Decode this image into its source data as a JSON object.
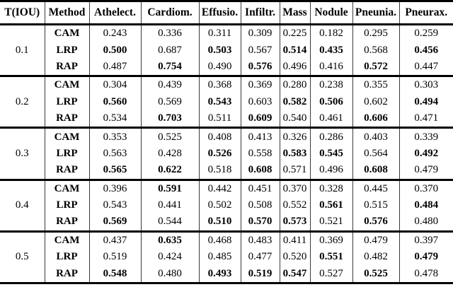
{
  "table": {
    "columns": [
      "T(IOU)",
      "Method",
      "Athelect.",
      "Cardiom.",
      "Effusio.",
      "Infiltr.",
      "Mass",
      "Nodule",
      "Pneunia.",
      "Pneurax."
    ],
    "colors": {
      "text": "#000000",
      "rule": "#000000",
      "background": "#ffffff"
    },
    "groups": [
      {
        "tiou": "0.1",
        "rows": [
          {
            "method": "CAM",
            "values": [
              "0.243",
              "0.336",
              "0.311",
              "0.309",
              "0.225",
              "0.182",
              "0.295",
              "0.259"
            ],
            "bold": [
              false,
              false,
              false,
              false,
              false,
              false,
              false,
              false
            ]
          },
          {
            "method": "LRP",
            "values": [
              "0.500",
              "0.687",
              "0.503",
              "0.567",
              "0.514",
              "0.435",
              "0.568",
              "0.456"
            ],
            "bold": [
              true,
              false,
              true,
              false,
              true,
              true,
              false,
              true
            ]
          },
          {
            "method": "RAP",
            "values": [
              "0.487",
              "0.754",
              "0.490",
              "0.576",
              "0.496",
              "0.416",
              "0.572",
              "0.447"
            ],
            "bold": [
              false,
              true,
              false,
              true,
              false,
              false,
              true,
              false
            ]
          }
        ]
      },
      {
        "tiou": "0.2",
        "rows": [
          {
            "method": "CAM",
            "values": [
              "0.304",
              "0.439",
              "0.368",
              "0.369",
              "0.280",
              "0.238",
              "0.355",
              "0.303"
            ],
            "bold": [
              false,
              false,
              false,
              false,
              false,
              false,
              false,
              false
            ]
          },
          {
            "method": "LRP",
            "values": [
              "0.560",
              "0.569",
              "0.543",
              "0.603",
              "0.582",
              "0.506",
              "0.602",
              "0.494"
            ],
            "bold": [
              true,
              false,
              true,
              false,
              true,
              true,
              false,
              true
            ]
          },
          {
            "method": "RAP",
            "values": [
              "0.534",
              "0.703",
              "0.511",
              "0.609",
              "0.540",
              "0.461",
              "0.606",
              "0.471"
            ],
            "bold": [
              false,
              true,
              false,
              true,
              false,
              false,
              true,
              false
            ]
          }
        ]
      },
      {
        "tiou": "0.3",
        "rows": [
          {
            "method": "CAM",
            "values": [
              "0.353",
              "0.525",
              "0.408",
              "0.413",
              "0.326",
              "0.286",
              "0.403",
              "0.339"
            ],
            "bold": [
              false,
              false,
              false,
              false,
              false,
              false,
              false,
              false
            ]
          },
          {
            "method": "LRP",
            "values": [
              "0.563",
              "0.428",
              "0.526",
              "0.558",
              "0.583",
              "0.545",
              "0.564",
              "0.492"
            ],
            "bold": [
              false,
              false,
              true,
              false,
              true,
              true,
              false,
              true
            ]
          },
          {
            "method": "RAP",
            "values": [
              "0.565",
              "0.622",
              "0.518",
              "0.608",
              "0.571",
              "0.496",
              "0.608",
              "0.479"
            ],
            "bold": [
              true,
              true,
              false,
              true,
              false,
              false,
              true,
              false
            ]
          }
        ]
      },
      {
        "tiou": "0.4",
        "rows": [
          {
            "method": "CAM",
            "values": [
              "0.396",
              "0.591",
              "0.442",
              "0.451",
              "0.370",
              "0.328",
              "0.445",
              "0.370"
            ],
            "bold": [
              false,
              true,
              false,
              false,
              false,
              false,
              false,
              false
            ]
          },
          {
            "method": "LRP",
            "values": [
              "0.543",
              "0.441",
              "0.502",
              "0.508",
              "0.552",
              "0.561",
              "0.515",
              "0.484"
            ],
            "bold": [
              false,
              false,
              false,
              false,
              false,
              true,
              false,
              true
            ]
          },
          {
            "method": "RAP",
            "values": [
              "0.569",
              "0.544",
              "0.510",
              "0.570",
              "0.573",
              "0.521",
              "0.576",
              "0.480"
            ],
            "bold": [
              true,
              false,
              true,
              true,
              true,
              false,
              true,
              false
            ]
          }
        ]
      },
      {
        "tiou": "0.5",
        "rows": [
          {
            "method": "CAM",
            "values": [
              "0.437",
              "0.635",
              "0.468",
              "0.483",
              "0.411",
              "0.369",
              "0.479",
              "0.397"
            ],
            "bold": [
              false,
              true,
              false,
              false,
              false,
              false,
              false,
              false
            ]
          },
          {
            "method": "LRP",
            "values": [
              "0.519",
              "0.424",
              "0.485",
              "0.477",
              "0.520",
              "0.551",
              "0.482",
              "0.479"
            ],
            "bold": [
              false,
              false,
              false,
              false,
              false,
              true,
              false,
              true
            ]
          },
          {
            "method": "RAP",
            "values": [
              "0.548",
              "0.480",
              "0.493",
              "0.519",
              "0.547",
              "0.527",
              "0.525",
              "0.478"
            ],
            "bold": [
              true,
              false,
              true,
              true,
              true,
              false,
              true,
              false
            ]
          }
        ]
      }
    ]
  }
}
